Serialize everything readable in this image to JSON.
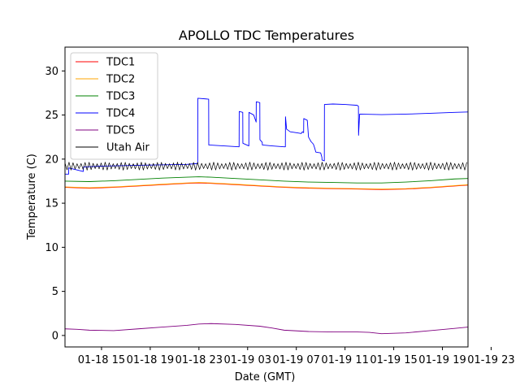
{
  "chart_data": {
    "type": "line",
    "title": "APOLLO TDC Temperatures",
    "xlabel": "Date (GMT)",
    "ylabel": "Temperature (C)",
    "xlim": [
      0,
      33.1
    ],
    "ylim": [
      -1.3,
      32.7
    ],
    "grid": false,
    "legend_position": "upper-left",
    "x_unit": "hours since 01-18 12:00 GMT",
    "x_ticks": [
      {
        "value": 3,
        "label": "01-18 15"
      },
      {
        "value": 7,
        "label": "01-18 19"
      },
      {
        "value": 11,
        "label": "01-18 23"
      },
      {
        "value": 15,
        "label": "01-19 03"
      },
      {
        "value": 19,
        "label": "01-19 07"
      },
      {
        "value": 23,
        "label": "01-19 11"
      },
      {
        "value": 27,
        "label": "01-19 15"
      },
      {
        "value": 31,
        "label": "01-19 19"
      },
      {
        "value": 35,
        "label": "01-19 23"
      }
    ],
    "y_ticks": [
      {
        "value": 0,
        "label": "0"
      },
      {
        "value": 5,
        "label": "5"
      },
      {
        "value": 10,
        "label": "10"
      },
      {
        "value": 15,
        "label": "15"
      },
      {
        "value": 20,
        "label": "20"
      },
      {
        "value": 25,
        "label": "25"
      },
      {
        "value": 30,
        "label": "30"
      }
    ],
    "series": [
      {
        "name": "TDC1",
        "color": "#ff0000",
        "x": [
          0,
          2,
          4,
          6,
          8,
          10,
          11,
          12,
          14,
          16,
          18,
          20,
          22,
          24,
          26,
          28,
          30,
          32,
          33.1
        ],
        "y": [
          16.8,
          16.7,
          16.8,
          16.95,
          17.1,
          17.25,
          17.3,
          17.25,
          17.1,
          16.95,
          16.8,
          16.7,
          16.65,
          16.6,
          16.55,
          16.6,
          16.75,
          16.95,
          17.05
        ]
      },
      {
        "name": "TDC2",
        "color": "#ffa500",
        "x": [
          0,
          2,
          4,
          6,
          8,
          10,
          11,
          12,
          14,
          16,
          18,
          20,
          22,
          24,
          26,
          28,
          30,
          32,
          33.1
        ],
        "y": [
          16.85,
          16.75,
          16.85,
          17.0,
          17.15,
          17.3,
          17.35,
          17.3,
          17.15,
          17.0,
          16.85,
          16.75,
          16.7,
          16.65,
          16.6,
          16.65,
          16.8,
          17.0,
          17.1
        ]
      },
      {
        "name": "TDC3",
        "color": "#008000",
        "x": [
          0,
          2,
          4,
          6,
          8,
          10,
          11,
          12,
          14,
          16,
          18,
          20,
          22,
          24,
          26,
          28,
          30,
          32,
          33.1
        ],
        "y": [
          17.5,
          17.45,
          17.55,
          17.7,
          17.85,
          17.95,
          18.0,
          17.95,
          17.8,
          17.65,
          17.5,
          17.4,
          17.35,
          17.3,
          17.3,
          17.4,
          17.55,
          17.75,
          17.8
        ]
      },
      {
        "name": "TDC4",
        "color": "#0000ff",
        "x": [
          0,
          0.3,
          0.31,
          1.5,
          1.51,
          3,
          6,
          10,
          10.9,
          10.91,
          11.8,
          11.81,
          14.3,
          14.31,
          14.6,
          14.61,
          15.1,
          15.11,
          15.5,
          15.7,
          15.71,
          16.0,
          16.01,
          16.2,
          16.21,
          17.0,
          18.0,
          18.1,
          18.11,
          18.2,
          18.5,
          19.0,
          19.4,
          19.5,
          19.6,
          19.61,
          19.9,
          20.0,
          20.2,
          20.4,
          20.5,
          20.6,
          21.0,
          21.1,
          21.11,
          21.3,
          21.31,
          22.0,
          23.0,
          24.0,
          24.1,
          24.11,
          24.2,
          26.0,
          28.0,
          30.0,
          32.0,
          33.1
        ],
        "y": [
          18.3,
          18.3,
          19.0,
          18.6,
          19.1,
          19.2,
          19.3,
          19.4,
          19.5,
          26.9,
          26.8,
          21.6,
          21.4,
          25.4,
          25.3,
          21.8,
          21.5,
          25.3,
          25.0,
          24.2,
          26.5,
          26.4,
          22.2,
          21.9,
          21.6,
          21.5,
          21.4,
          21.4,
          24.8,
          23.4,
          23.1,
          23.0,
          22.9,
          23.1,
          23.0,
          24.6,
          24.4,
          22.5,
          22.0,
          21.7,
          21.3,
          20.8,
          20.7,
          20.2,
          19.9,
          19.8,
          26.2,
          26.25,
          26.2,
          26.1,
          26.0,
          22.7,
          25.1,
          25.05,
          25.1,
          25.2,
          25.3,
          25.35
        ]
      },
      {
        "name": "TDC5",
        "color": "#800080",
        "x": [
          0,
          1,
          2,
          4,
          6,
          8,
          10,
          11,
          12,
          14,
          16,
          17,
          18,
          20,
          22,
          24,
          25,
          26,
          28,
          30,
          32,
          33.1
        ],
        "y": [
          0.75,
          0.7,
          0.6,
          0.55,
          0.75,
          0.95,
          1.15,
          1.3,
          1.35,
          1.25,
          1.05,
          0.85,
          0.6,
          0.45,
          0.4,
          0.4,
          0.35,
          0.2,
          0.3,
          0.55,
          0.8,
          0.95
        ]
      },
      {
        "name": "Utah Air",
        "color": "#000000",
        "x": [
          0,
          33.1
        ],
        "y": [
          19.2,
          19.2
        ],
        "oscillation_amplitude": 0.45,
        "oscillation_period_hours": 0.33
      }
    ]
  }
}
